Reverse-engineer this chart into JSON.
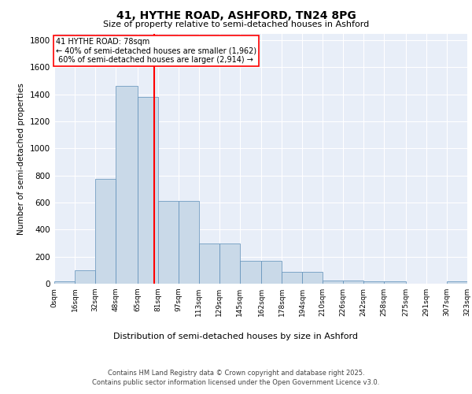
{
  "title": "41, HYTHE ROAD, ASHFORD, TN24 8PG",
  "subtitle": "Size of property relative to semi-detached houses in Ashford",
  "xlabel": "Distribution of semi-detached houses by size in Ashford",
  "ylabel": "Number of semi-detached properties",
  "property_size": 78,
  "property_label": "41 HYTHE ROAD: 78sqm",
  "pct_smaller": 40,
  "pct_larger": 60,
  "count_smaller": 1962,
  "count_larger": 2914,
  "bin_edges": [
    0,
    16,
    32,
    48,
    65,
    81,
    97,
    113,
    129,
    145,
    162,
    178,
    194,
    210,
    226,
    242,
    258,
    275,
    291,
    307,
    323
  ],
  "bin_labels": [
    "0sqm",
    "16sqm",
    "32sqm",
    "48sqm",
    "65sqm",
    "81sqm",
    "97sqm",
    "113sqm",
    "129sqm",
    "145sqm",
    "162sqm",
    "178sqm",
    "194sqm",
    "210sqm",
    "226sqm",
    "242sqm",
    "258sqm",
    "275sqm",
    "291sqm",
    "307sqm",
    "323sqm"
  ],
  "bar_heights": [
    15,
    100,
    775,
    1460,
    1380,
    610,
    610,
    295,
    295,
    170,
    170,
    85,
    85,
    25,
    25,
    15,
    15,
    0,
    0,
    15
  ],
  "bar_color": "#c9d9e8",
  "bar_edge_color": "#5b8db8",
  "vline_x": 78,
  "vline_color": "red",
  "ylim": [
    0,
    1850
  ],
  "background_color": "#e8eef8",
  "grid_color": "white",
  "footer_line1": "Contains HM Land Registry data © Crown copyright and database right 2025.",
  "footer_line2": "Contains public sector information licensed under the Open Government Licence v3.0."
}
